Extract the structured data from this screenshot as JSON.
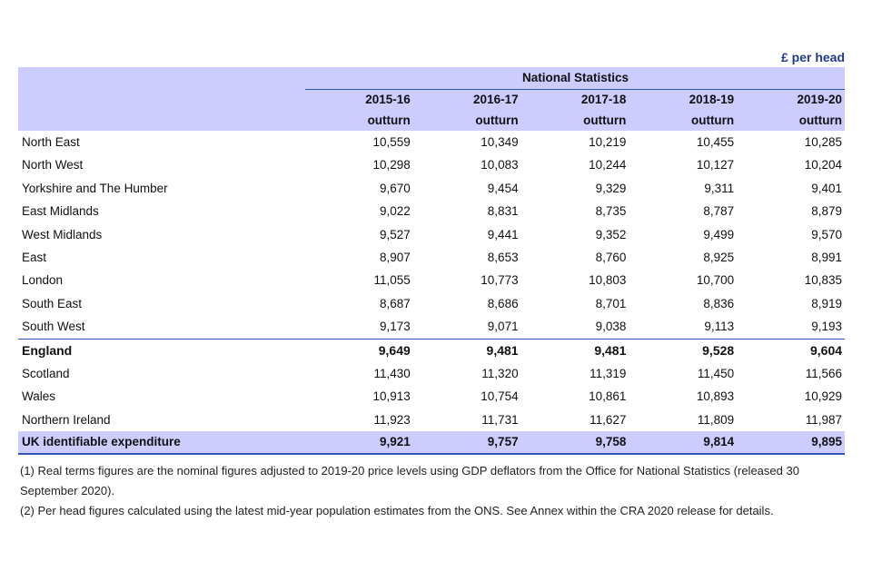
{
  "unit_label": "£ per head",
  "group_header": "National Statistics",
  "columns": [
    {
      "year": "2015-16",
      "type": "outturn"
    },
    {
      "year": "2016-17",
      "type": "outturn"
    },
    {
      "year": "2017-18",
      "type": "outturn"
    },
    {
      "year": "2018-19",
      "type": "outturn"
    },
    {
      "year": "2019-20",
      "type": "outturn"
    }
  ],
  "rows": [
    {
      "label": "North East",
      "values": [
        "10,559",
        "10,349",
        "10,219",
        "10,455",
        "10,285"
      ]
    },
    {
      "label": "North West",
      "values": [
        "10,298",
        "10,083",
        "10,244",
        "10,127",
        "10,204"
      ]
    },
    {
      "label": "Yorkshire and The Humber",
      "values": [
        "9,670",
        "9,454",
        "9,329",
        "9,311",
        "9,401"
      ]
    },
    {
      "label": "East Midlands",
      "values": [
        "9,022",
        "8,831",
        "8,735",
        "8,787",
        "8,879"
      ]
    },
    {
      "label": "West Midlands",
      "values": [
        "9,527",
        "9,441",
        "9,352",
        "9,499",
        "9,570"
      ]
    },
    {
      "label": "East",
      "values": [
        "8,907",
        "8,653",
        "8,760",
        "8,925",
        "8,991"
      ]
    },
    {
      "label": "London",
      "values": [
        "11,055",
        "10,773",
        "10,803",
        "10,700",
        "10,835"
      ]
    },
    {
      "label": "South East",
      "values": [
        "8,687",
        "8,686",
        "8,701",
        "8,836",
        "8,919"
      ]
    },
    {
      "label": "South West",
      "values": [
        "9,173",
        "9,071",
        "9,038",
        "9,113",
        "9,193"
      ]
    },
    {
      "label": "England",
      "values": [
        "9,649",
        "9,481",
        "9,481",
        "9,528",
        "9,604"
      ]
    },
    {
      "label": "Scotland",
      "values": [
        "11,430",
        "11,320",
        "11,319",
        "11,450",
        "11,566"
      ]
    },
    {
      "label": "Wales",
      "values": [
        "10,913",
        "10,754",
        "10,861",
        "10,893",
        "10,929"
      ]
    },
    {
      "label": "Northern Ireland",
      "values": [
        "11,923",
        "11,731",
        "11,627",
        "11,809",
        "11,987"
      ]
    },
    {
      "label": "UK identifiable expenditure",
      "values": [
        "9,921",
        "9,757",
        "9,758",
        "9,814",
        "9,895"
      ]
    }
  ],
  "notes": [
    "(1) Real terms figures are the nominal figures adjusted to 2019-20 price levels using GDP deflators from the Office for National Statistics (released 30 September 2020).",
    "(2) Per head figures calculated using the latest mid-year population estimates from the ONS. See Annex within the CRA 2020 release for details."
  ]
}
